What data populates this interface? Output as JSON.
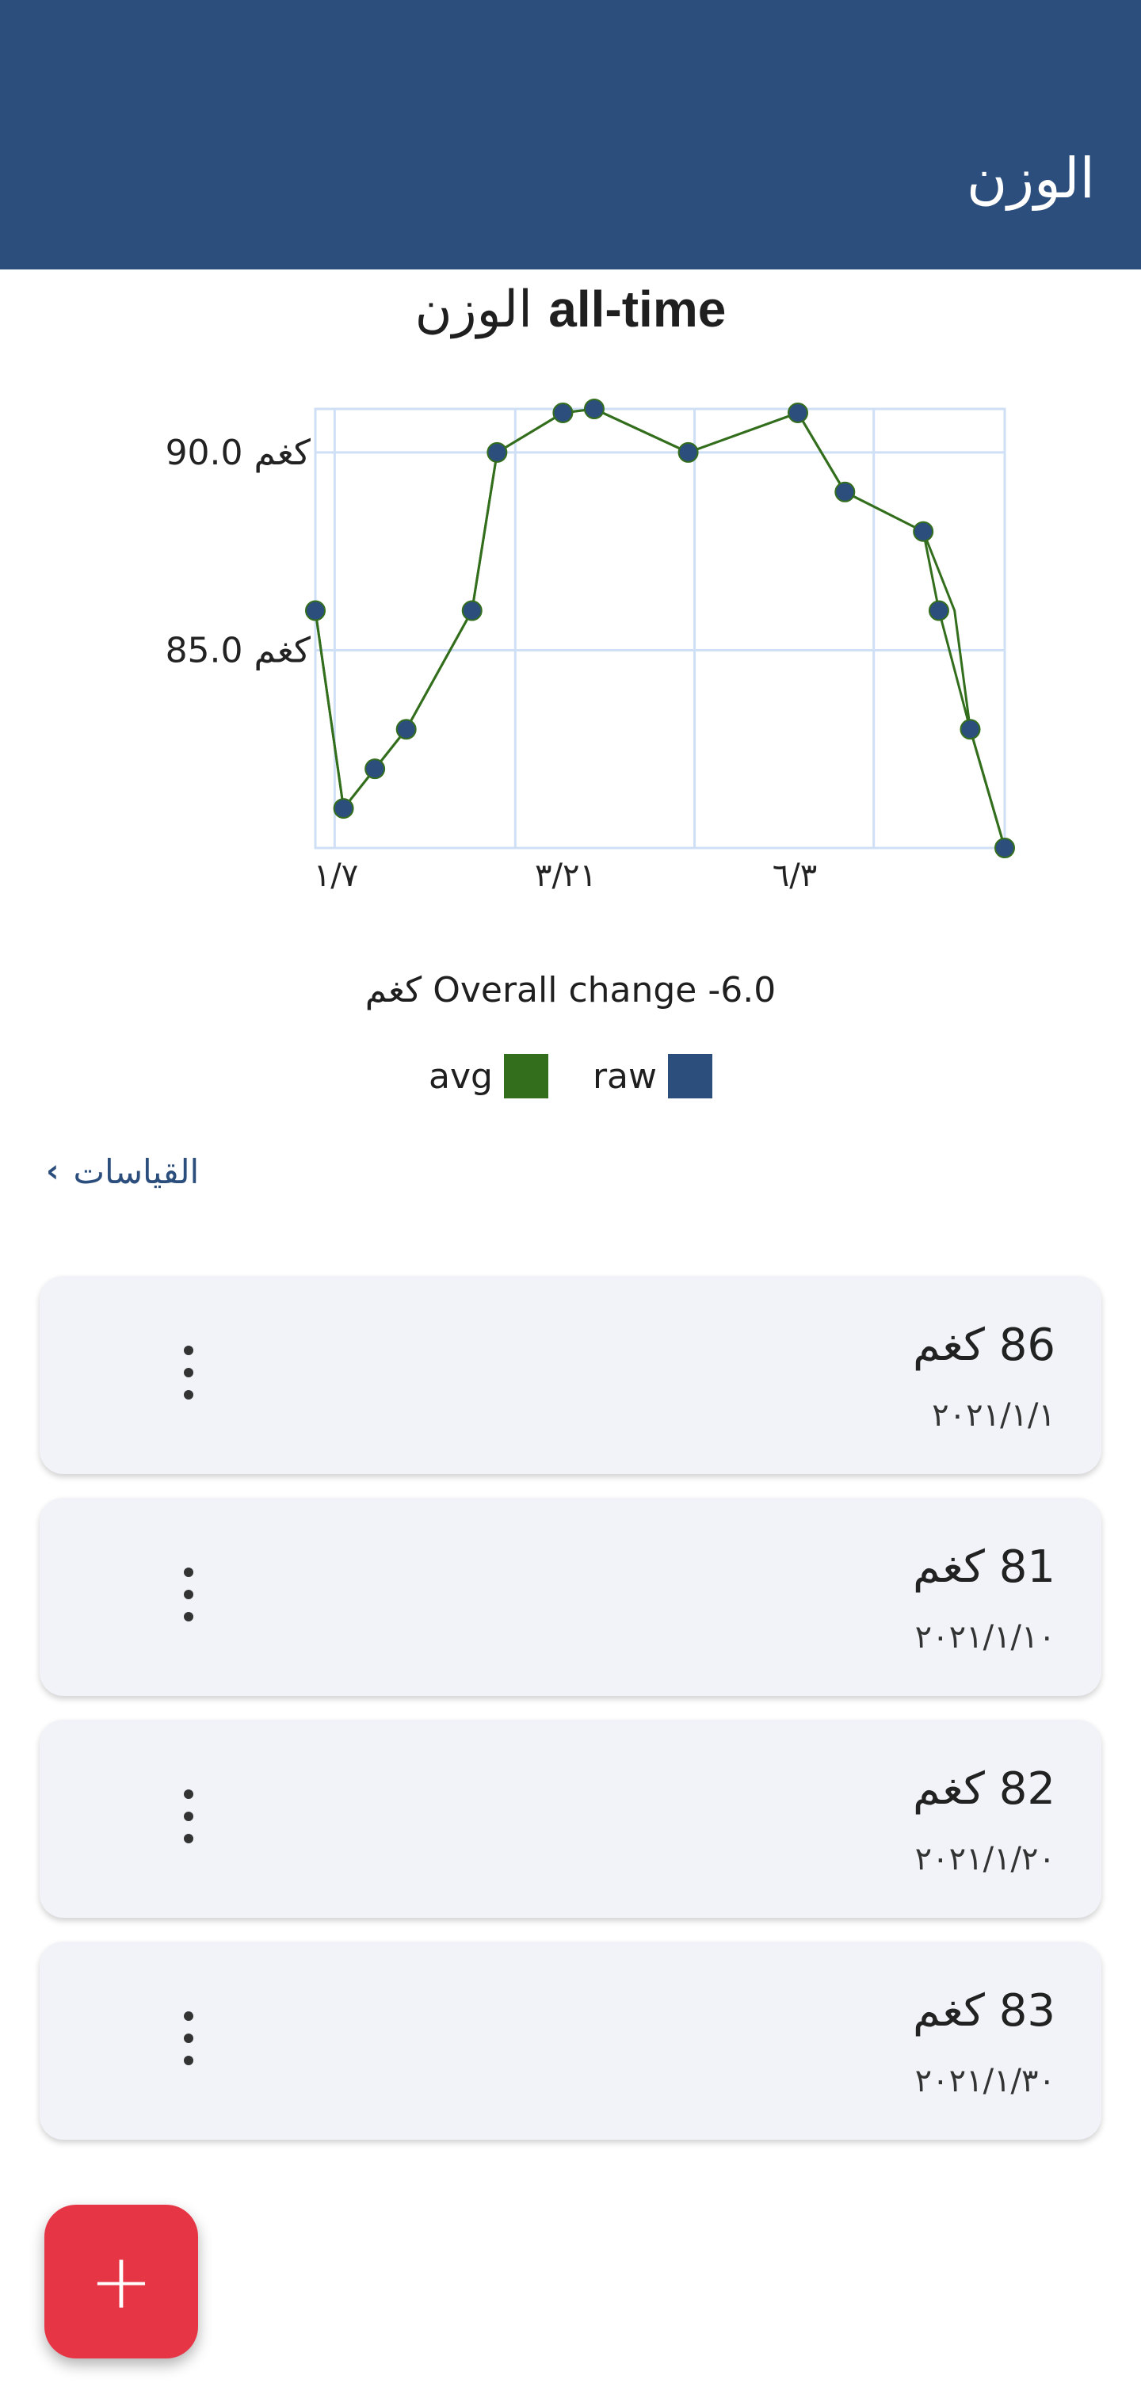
{
  "app_bar": {
    "title": "الوزن"
  },
  "chart_header": {
    "title_arabic": "الوزن",
    "title_bold": "all-time"
  },
  "chart_data": {
    "type": "line",
    "x_tick_labels": [
      "١/٧",
      "٣/٢١",
      "٦/٣"
    ],
    "y_tick_labels": [
      "90.0 كغم",
      "85.0 كغم"
    ],
    "y_ticks": [
      90.0,
      85.0
    ],
    "ylim": [
      80,
      91.1
    ],
    "grid": true,
    "series": [
      {
        "name": "raw",
        "color": "#2c4e7d",
        "points": [
          [
            0,
            86
          ],
          [
            9,
            81
          ],
          [
            19,
            82
          ],
          [
            29,
            83
          ],
          [
            50,
            86
          ],
          [
            58,
            90
          ],
          [
            79,
            91
          ],
          [
            89,
            91.1
          ],
          [
            119,
            90
          ],
          [
            154,
            91
          ],
          [
            169,
            89
          ],
          [
            194,
            88
          ],
          [
            199,
            86
          ],
          [
            209,
            83
          ],
          [
            220,
            80
          ]
        ]
      },
      {
        "name": "avg",
        "color": "#336e1d",
        "points": [
          [
            0,
            86
          ],
          [
            9,
            81
          ],
          [
            19,
            82
          ],
          [
            29,
            83
          ],
          [
            50,
            86
          ],
          [
            58,
            90
          ],
          [
            79,
            91
          ],
          [
            89,
            91.1
          ],
          [
            119,
            90
          ],
          [
            154,
            91
          ],
          [
            169,
            89
          ],
          [
            194,
            88
          ],
          [
            199,
            87
          ],
          [
            204,
            86
          ],
          [
            209,
            83
          ],
          [
            220,
            80
          ]
        ]
      }
    ]
  },
  "summary": {
    "overall_change": "كغم Overall change -6.0"
  },
  "legend": [
    {
      "label": "avg",
      "color": "#336e1d"
    },
    {
      "label": "raw",
      "color": "#2c4e7d"
    }
  ],
  "section": {
    "label": "القياسات",
    "chevron": "‹"
  },
  "entries": [
    {
      "weight": "86 كغم",
      "date": "٢٠٢١/١/١"
    },
    {
      "weight": "81 كغم",
      "date": "٢٠٢١/١/١٠"
    },
    {
      "weight": "82 كغم",
      "date": "٢٠٢١/١/٢٠"
    },
    {
      "weight": "83 كغم",
      "date": "٢٠٢١/١/٣٠"
    }
  ],
  "fab": {
    "icon": "plus-icon",
    "label": "+"
  }
}
